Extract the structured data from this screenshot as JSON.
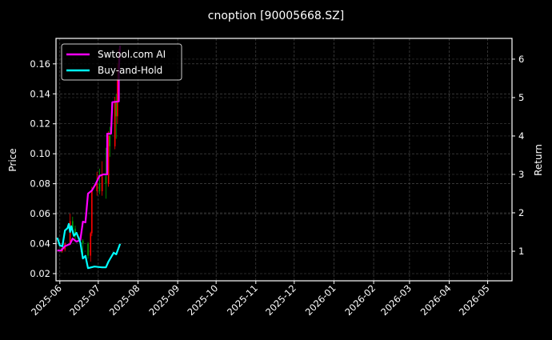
{
  "chart_data": {
    "type": "line",
    "title": "cnoption [90005668.SZ]",
    "ylabel": "Price",
    "y2label": "Return",
    "xlim": [
      "2025-05-29",
      "2026-05-20"
    ],
    "ylim": [
      0.0152,
      0.177
    ],
    "y2lim": [
      0.23,
      6.54
    ],
    "grid": true,
    "legend_placement": "top-left",
    "x_ticks": [
      "2025-06",
      "2025-07",
      "2025-08",
      "2025-09",
      "2025-10",
      "2025-11",
      "2025-12",
      "2026-01",
      "2026-02",
      "2026-03",
      "2026-04",
      "2026-05"
    ],
    "y_ticks": [
      0.02,
      0.04,
      0.06,
      0.08,
      0.1,
      0.12,
      0.14,
      0.16
    ],
    "y_tick_labels": [
      "0.02",
      "0.04",
      "0.06",
      "0.08",
      "0.10",
      "0.12",
      "0.14",
      "0.16"
    ],
    "y2_ticks": [
      1,
      2,
      3,
      4,
      5,
      6
    ],
    "y2_tick_labels": [
      "1",
      "2",
      "3",
      "4",
      "5",
      "6"
    ],
    "candles": {
      "up_color": "#ff0000",
      "down_color": "#00a000",
      "columns": [
        "date",
        "open",
        "close",
        "high",
        "low"
      ],
      "rows": [
        [
          "2025-06-02",
          0.036,
          0.035,
          0.037,
          0.034
        ],
        [
          "2025-06-03",
          0.035,
          0.036,
          0.038,
          0.034
        ],
        [
          "2025-06-05",
          0.036,
          0.04,
          0.041,
          0.035
        ],
        [
          "2025-06-09",
          0.04,
          0.055,
          0.06,
          0.039
        ],
        [
          "2025-06-11",
          0.055,
          0.05,
          0.058,
          0.046
        ],
        [
          "2025-06-13",
          0.05,
          0.045,
          0.052,
          0.043
        ],
        [
          "2025-06-17",
          0.045,
          0.042,
          0.046,
          0.04
        ],
        [
          "2025-06-19",
          0.042,
          0.04,
          0.043,
          0.033
        ],
        [
          "2025-06-23",
          0.04,
          0.032,
          0.041,
          0.03
        ],
        [
          "2025-06-25",
          0.032,
          0.047,
          0.048,
          0.028
        ],
        [
          "2025-06-26",
          0.047,
          0.075,
          0.078,
          0.045
        ],
        [
          "2025-06-30",
          0.075,
          0.08,
          0.088,
          0.072
        ],
        [
          "2025-07-02",
          0.08,
          0.075,
          0.09,
          0.073
        ],
        [
          "2025-07-04",
          0.075,
          0.085,
          0.095,
          0.072
        ],
        [
          "2025-07-07",
          0.085,
          0.08,
          0.104,
          0.07
        ],
        [
          "2025-07-09",
          0.08,
          0.112,
          0.115,
          0.078
        ],
        [
          "2025-07-10",
          0.112,
          0.105,
          0.118,
          0.098
        ],
        [
          "2025-07-14",
          0.105,
          0.135,
          0.138,
          0.103
        ],
        [
          "2025-07-15",
          0.135,
          0.125,
          0.14,
          0.11
        ],
        [
          "2025-07-16",
          0.125,
          0.15,
          0.16,
          0.12
        ],
        [
          "2025-07-17",
          0.15,
          0.165,
          0.17,
          0.145
        ]
      ]
    },
    "series": [
      {
        "name": "Swtool.com AI",
        "axis": "right",
        "color": "#ff00ff",
        "x": [
          "2025-05-30",
          "2025-06-02",
          "2025-06-05",
          "2025-06-09",
          "2025-06-11",
          "2025-06-14",
          "2025-06-17",
          "2025-06-19",
          "2025-06-21",
          "2025-06-23",
          "2025-06-26",
          "2025-06-29",
          "2025-07-02",
          "2025-07-05",
          "2025-07-08",
          "2025-07-08",
          "2025-07-11",
          "2025-07-12",
          "2025-07-17",
          "2025-07-17",
          "2025-07-18"
        ],
        "values": [
          1.02,
          1.02,
          1.13,
          1.19,
          1.33,
          1.25,
          1.29,
          1.77,
          1.75,
          2.5,
          2.58,
          2.75,
          2.96,
          3.0,
          3.0,
          4.06,
          4.06,
          4.88,
          4.9,
          5.73,
          6.35
        ]
      },
      {
        "name": "Buy-and-Hold",
        "axis": "right",
        "color": "#00ffff",
        "x": [
          "2025-05-30",
          "2025-06-01",
          "2025-06-03",
          "2025-06-05",
          "2025-06-07",
          "2025-06-08",
          "2025-06-09",
          "2025-06-10",
          "2025-06-12",
          "2025-06-13",
          "2025-06-14",
          "2025-06-17",
          "2025-06-19",
          "2025-06-21",
          "2025-06-23",
          "2025-06-28",
          "2025-07-04",
          "2025-07-07",
          "2025-07-09",
          "2025-07-13",
          "2025-07-15",
          "2025-07-18"
        ],
        "values": [
          1.35,
          1.15,
          1.13,
          1.54,
          1.6,
          1.71,
          1.5,
          1.65,
          1.4,
          1.44,
          1.48,
          1.23,
          0.81,
          0.88,
          0.56,
          0.6,
          0.58,
          0.58,
          0.73,
          0.96,
          0.92,
          1.19
        ]
      }
    ]
  }
}
